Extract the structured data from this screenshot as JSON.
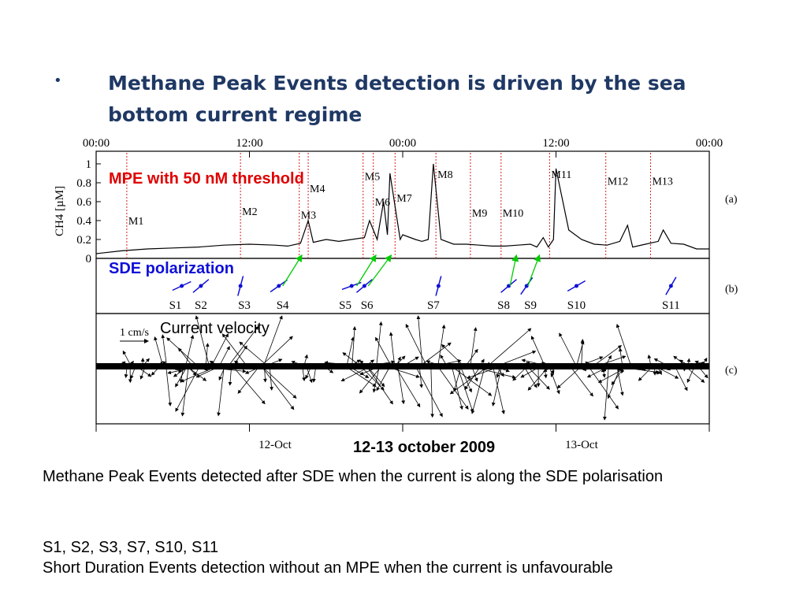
{
  "slide": {
    "bullet": "•",
    "title": "Methane Peak Events detection is driven by the sea bottom current regime",
    "body_line1": "Methane Peak Events detected after SDE when the current is along the SDE polarisation",
    "body_line2": "S1, S2, S3, S7, S10, S11",
    "body_line3": "Short Duration Events detection without an MPE when the current is unfavourable"
  },
  "figure": {
    "overlay_mpe": "MPE with 50 nM  threshold",
    "overlay_sde": "SDE polarization",
    "overlay_current": "Current velocity",
    "date_caption": "12-13 october 2009",
    "colors": {
      "mpe": "#e00000",
      "sde": "#1010d8",
      "arrows": "#00cc00",
      "title": "#1f3864"
    }
  },
  "chart_data": {
    "type": "line",
    "x_unit": "hours since 12-Oct 00:00",
    "xlim": [
      0,
      48
    ],
    "time_ticks": [
      {
        "label": "00:00",
        "hour": 0
      },
      {
        "label": "12:00",
        "hour": 12
      },
      {
        "label": "00:00",
        "hour": 24
      },
      {
        "label": "12:00",
        "hour": 36
      },
      {
        "label": "00:00",
        "hour": 48
      }
    ],
    "date_labels": [
      {
        "label": "12-Oct",
        "hour": 14
      },
      {
        "label": "13-Oct",
        "hour": 38
      }
    ],
    "panel_a": {
      "label": "(a)",
      "ylabel": "CH4 [µM]",
      "ylim": [
        0,
        1
      ],
      "yticks": [
        {
          "label": "0",
          "value": 0
        },
        {
          "label": "0.2",
          "value": 0.2
        },
        {
          "label": "0.4",
          "value": 0.4
        },
        {
          "label": "0.6",
          "value": 0.6
        },
        {
          "label": "0.8",
          "value": 0.8
        },
        {
          "label": "1",
          "value": 1
        }
      ],
      "series_x": [
        0,
        2,
        4,
        6,
        8,
        10,
        12,
        14,
        15,
        16,
        16.6,
        17,
        18,
        19,
        20,
        21,
        21.4,
        22,
        22.5,
        22.8,
        23,
        23.8,
        24,
        25,
        25.5,
        26,
        26.4,
        27,
        28,
        29,
        30,
        31,
        32,
        33,
        34,
        34.5,
        35,
        35.4,
        35.8,
        36,
        37,
        38,
        39,
        40,
        41,
        41.6,
        42,
        43,
        44,
        44.4,
        45,
        46,
        47,
        48
      ],
      "series_y": [
        0.05,
        0.08,
        0.1,
        0.11,
        0.12,
        0.14,
        0.15,
        0.14,
        0.13,
        0.16,
        0.4,
        0.17,
        0.2,
        0.18,
        0.2,
        0.22,
        0.4,
        0.2,
        0.6,
        0.25,
        0.9,
        0.2,
        0.25,
        0.2,
        0.18,
        0.2,
        1.0,
        0.2,
        0.15,
        0.15,
        0.14,
        0.13,
        0.13,
        0.14,
        0.15,
        0.12,
        0.22,
        0.12,
        0.2,
        0.95,
        0.3,
        0.2,
        0.15,
        0.14,
        0.18,
        0.35,
        0.12,
        0.15,
        0.18,
        0.3,
        0.16,
        0.15,
        0.1,
        0.1
      ],
      "mpe_events": [
        {
          "label": "M1",
          "hour": 2.4,
          "y": 0.36
        },
        {
          "label": "M2",
          "hour": 11.3,
          "y": 0.46
        },
        {
          "label": "M3",
          "hour": 15.9,
          "y": 0.42
        },
        {
          "label": "M4",
          "hour": 16.6,
          "y": 0.7
        },
        {
          "label": "M5",
          "hour": 20.9,
          "y": 0.83
        },
        {
          "label": "M6",
          "hour": 21.7,
          "y": 0.56
        },
        {
          "label": "M7",
          "hour": 23.4,
          "y": 0.6
        },
        {
          "label": "M8",
          "hour": 26.6,
          "y": 0.85
        },
        {
          "label": "M9",
          "hour": 29.3,
          "y": 0.44
        },
        {
          "label": "M10",
          "hour": 31.7,
          "y": 0.44
        },
        {
          "label": "M11",
          "hour": 35.5,
          "y": 0.85
        },
        {
          "label": "M12",
          "hour": 39.9,
          "y": 0.78
        },
        {
          "label": "M13",
          "hour": 43.4,
          "y": 0.78
        }
      ]
    },
    "panel_b": {
      "label": "(b)",
      "sde_events": [
        {
          "label": "S1",
          "hour": 6.7,
          "label_hour": 6.2,
          "angle": 25
        },
        {
          "label": "S2",
          "hour": 8.2,
          "label_hour": 8.2,
          "angle": 40
        },
        {
          "label": "S3",
          "hour": 11.3,
          "label_hour": 11.6,
          "angle": 75
        },
        {
          "label": "S4",
          "hour": 14.3,
          "label_hour": 14.6,
          "angle": 35
        },
        {
          "label": "S5",
          "hour": 20.0,
          "label_hour": 19.5,
          "angle": 20
        },
        {
          "label": "S6",
          "hour": 21.0,
          "label_hour": 21.2,
          "angle": 40
        },
        {
          "label": "S7",
          "hour": 26.8,
          "label_hour": 26.4,
          "angle": 75
        },
        {
          "label": "S8",
          "hour": 32.3,
          "label_hour": 31.9,
          "angle": 40
        },
        {
          "label": "S9",
          "hour": 33.7,
          "label_hour": 34.0,
          "angle": 55
        },
        {
          "label": "S10",
          "hour": 37.6,
          "label_hour": 37.6,
          "angle": 30
        },
        {
          "label": "S11",
          "hour": 45.0,
          "label_hour": 45.0,
          "angle": 60
        }
      ],
      "links": [
        {
          "from_hour": 14.6,
          "to_hour": 16.1
        },
        {
          "from_hour": 20.4,
          "to_hour": 21.9
        },
        {
          "from_hour": 21.3,
          "to_hour": 23.1
        },
        {
          "from_hour": 32.4,
          "to_hour": 32.9
        },
        {
          "from_hour": 33.8,
          "to_hour": 34.7
        }
      ]
    },
    "panel_c": {
      "label": "(c)",
      "scale_label": "1 cm/s",
      "note": "current velocity stick plot (arrows)"
    }
  }
}
